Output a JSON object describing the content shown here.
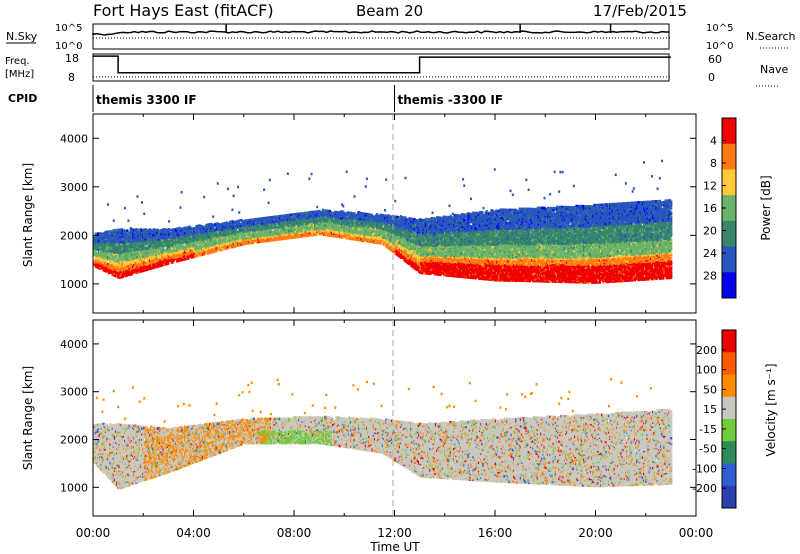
{
  "header": {
    "station": "Fort Hays East (fitACF)",
    "beam": "Beam 20",
    "date": "17/Feb/2015"
  },
  "strips": {
    "nsky_label": "N.Sky",
    "nsky_ticks": [
      "10^5",
      "10^0"
    ],
    "nsearch_label": "N.Search",
    "freq_label_line1": "Freq.",
    "freq_label_line2": "[MHz]",
    "freq_ticks": [
      "18",
      "8"
    ],
    "nave_ticks": [
      "60",
      "0"
    ],
    "nave_label": "Nave",
    "cpid_label": "CPID",
    "cpid_segments": [
      {
        "label": "themis 3300 IF",
        "start_hr": 0.0,
        "end_hr": 12.0
      },
      {
        "label": "themis -3300 IF",
        "start_hr": 12.0,
        "end_hr": 24.0
      }
    ],
    "freq_segments_mhz": [
      {
        "start_hr": 0.0,
        "end_hr": 1.0,
        "value": 18
      },
      {
        "start_hr": 1.0,
        "end_hr": 13.0,
        "value": 10
      },
      {
        "start_hr": 13.0,
        "end_hr": 23.0,
        "value": 17.5
      }
    ]
  },
  "chart_data": [
    {
      "type": "heatmap",
      "title": "Power",
      "xlabel": "",
      "ylabel": "Slant Range [km]",
      "xlim_hours": [
        0,
        24
      ],
      "ylim_km": [
        400,
        4500
      ],
      "yticks": [
        "1000",
        "2000",
        "3000",
        "4000"
      ],
      "colorbar_label": "Power [dB]",
      "colorbar_ticks": [
        "4",
        "8",
        "12",
        "16",
        "20",
        "24",
        "28"
      ],
      "colorbar_colors": [
        "#0000ee",
        "#2855c0",
        "#37866a",
        "#6ab46a",
        "#ffc838",
        "#ff7a14",
        "#f00000"
      ],
      "scatter_band_km": [
        {
          "hr": 0.0,
          "lo": 1350,
          "hi": 2000
        },
        {
          "hr": 1.0,
          "lo": 1100,
          "hi": 2100
        },
        {
          "hr": 3.0,
          "lo": 1400,
          "hi": 2100
        },
        {
          "hr": 6.0,
          "lo": 1800,
          "hi": 2300
        },
        {
          "hr": 9.0,
          "lo": 2000,
          "hi": 2500
        },
        {
          "hr": 11.5,
          "lo": 1800,
          "hi": 2400
        },
        {
          "hr": 13.0,
          "lo": 1200,
          "hi": 2300
        },
        {
          "hr": 16.0,
          "lo": 1050,
          "hi": 2500
        },
        {
          "hr": 20.0,
          "lo": 1000,
          "hi": 2600
        },
        {
          "hr": 23.0,
          "lo": 1100,
          "hi": 2700
        }
      ]
    },
    {
      "type": "heatmap",
      "title": "Velocity",
      "xlabel": "Time UT",
      "ylabel": "Slant Range [km]",
      "xlim_hours": [
        0,
        24
      ],
      "ylim_km": [
        400,
        4500
      ],
      "yticks": [
        "1000",
        "2000",
        "3000",
        "4000"
      ],
      "xticks": [
        "00:00",
        "04:00",
        "08:00",
        "12:00",
        "16:00",
        "20:00",
        "00:00"
      ],
      "colorbar_label": "Velocity [m s⁻¹]",
      "colorbar_ticks": [
        "200",
        "100",
        "50",
        "15",
        "-15",
        "-50",
        "-100",
        "-200"
      ],
      "colorbar_colors": [
        "#2a3fb0",
        "#2f5fd0",
        "#2e8b57",
        "#6ecb3c",
        "#c8c8c0",
        "#ff8c00",
        "#ff5a00",
        "#ee0000"
      ],
      "scatter_band_km": [
        {
          "hr": 0.0,
          "lo": 1500,
          "hi": 2300
        },
        {
          "hr": 1.0,
          "lo": 950,
          "hi": 2300
        },
        {
          "hr": 3.0,
          "lo": 1300,
          "hi": 2200
        },
        {
          "hr": 6.0,
          "lo": 1900,
          "hi": 2400
        },
        {
          "hr": 9.0,
          "lo": 1900,
          "hi": 2450
        },
        {
          "hr": 11.5,
          "lo": 1700,
          "hi": 2400
        },
        {
          "hr": 13.0,
          "lo": 1200,
          "hi": 2300
        },
        {
          "hr": 16.0,
          "lo": 1100,
          "hi": 2400
        },
        {
          "hr": 20.0,
          "lo": 1000,
          "hi": 2500
        },
        {
          "hr": 23.0,
          "lo": 1050,
          "hi": 2600
        }
      ]
    }
  ]
}
